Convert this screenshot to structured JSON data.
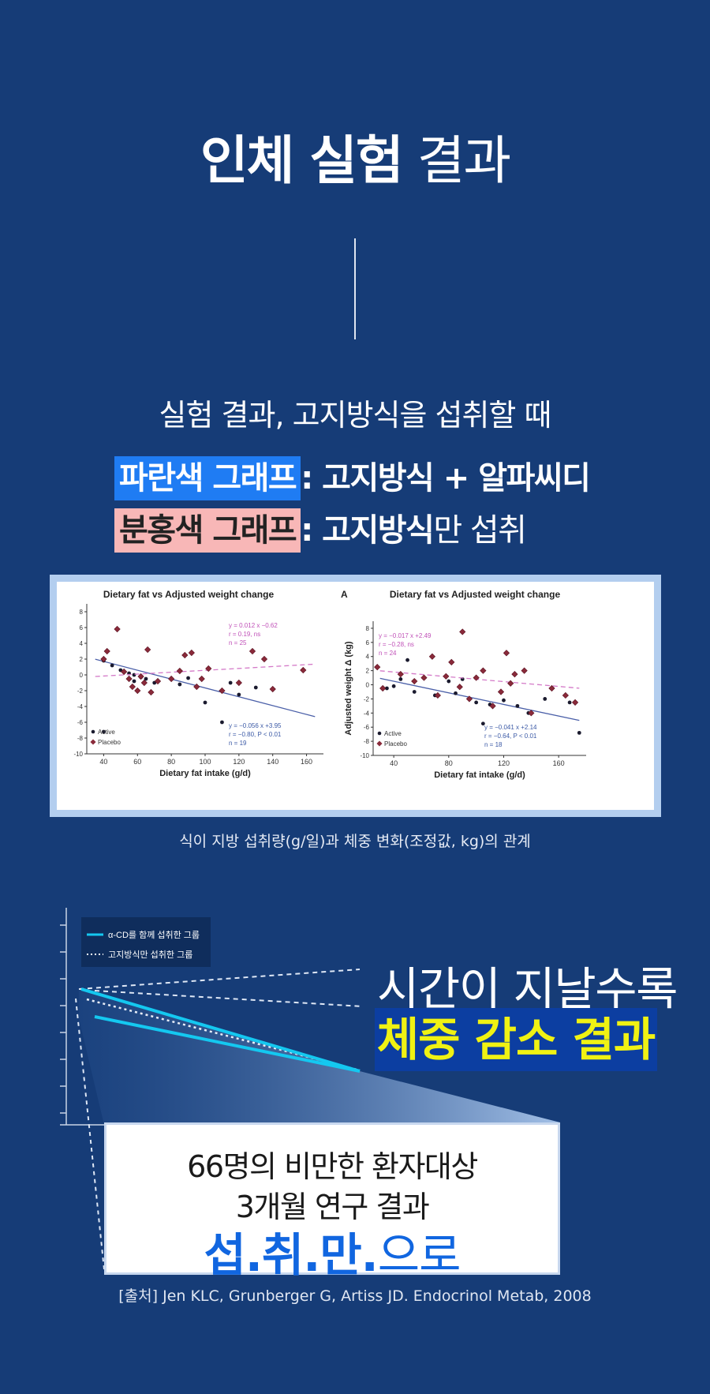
{
  "header": {
    "title_bold": "인체 실험",
    "title_normal": "결과"
  },
  "intro": "실험 결과, 고지방식을 섭취할 때",
  "legend": {
    "blue_tag": "파란색 그래프",
    "blue_desc": ": 고지방식 + 알파씨디",
    "pink_tag": "분홍색 그래프",
    "pink_desc_bold": ": 고지방식",
    "pink_desc_normal": "만 섭취"
  },
  "colors": {
    "background": "#163c77",
    "blue_tag": "#1f7cf3",
    "pink_tag": "#f8b7b7",
    "highlight_bg": "#0c3ea1",
    "highlight_text": "#f0f213",
    "cyan_line": "#14c8f0"
  },
  "chart_data": [
    {
      "type": "scatter",
      "title": "Dietary fat vs Adjusted weight change",
      "xlabel": "Dietary fat intake (g/d)",
      "ylabel": "",
      "xlim": [
        30,
        170
      ],
      "ylim": [
        -10,
        9
      ],
      "xticks": [
        "40",
        "60",
        "80",
        "100",
        "120",
        "140",
        "160"
      ],
      "yticks": [
        "8",
        "6",
        "4",
        "2",
        "0",
        "-2",
        "-4",
        "-6",
        "-8",
        "-10"
      ],
      "legend": [
        "Active",
        "Placebo"
      ],
      "legend_position": "bottom-left",
      "annotations": [
        {
          "series": "Placebo",
          "lines": [
            "y = 0.012 x −0.62",
            "r = 0.19, ns",
            "n = 25"
          ]
        },
        {
          "series": "Active",
          "lines": [
            "y = −0.056 x +3.95",
            "r = −0.80, P < 0.01",
            "n = 19"
          ]
        }
      ],
      "series": [
        {
          "name": "Active",
          "points": [
            [
              40,
              1.8
            ],
            [
              45,
              1.2
            ],
            [
              50,
              0.6
            ],
            [
              55,
              0.2
            ],
            [
              58,
              0.0
            ],
            [
              62,
              -0.3
            ],
            [
              65,
              -0.5
            ],
            [
              70,
              -1.0
            ],
            [
              85,
              -1.2
            ],
            [
              90,
              -0.4
            ],
            [
              95,
              -1.5
            ],
            [
              100,
              -3.5
            ],
            [
              110,
              -6.0
            ],
            [
              115,
              -1.0
            ],
            [
              120,
              -2.5
            ],
            [
              130,
              -1.6
            ],
            [
              140,
              -1.8
            ],
            [
              40,
              -7.2
            ],
            [
              58,
              -0.8
            ]
          ],
          "fit": [
            -0.056,
            3.95
          ]
        },
        {
          "name": "Placebo",
          "points": [
            [
              40,
              2.0
            ],
            [
              42,
              3.0
            ],
            [
              48,
              5.8
            ],
            [
              52,
              0.4
            ],
            [
              55,
              -0.5
            ],
            [
              57,
              -1.5
            ],
            [
              60,
              -2.0
            ],
            [
              62,
              -0.2
            ],
            [
              64,
              -1.0
            ],
            [
              66,
              3.2
            ],
            [
              68,
              -2.2
            ],
            [
              72,
              -0.8
            ],
            [
              80,
              -0.5
            ],
            [
              85,
              0.5
            ],
            [
              88,
              2.5
            ],
            [
              92,
              2.8
            ],
            [
              95,
              -1.5
            ],
            [
              98,
              -0.5
            ],
            [
              102,
              0.8
            ],
            [
              110,
              -2.0
            ],
            [
              120,
              -1.0
            ],
            [
              128,
              3.0
            ],
            [
              135,
              2.0
            ],
            [
              140,
              -1.8
            ],
            [
              158,
              0.6
            ]
          ],
          "fit": [
            0.012,
            -0.62
          ]
        }
      ]
    },
    {
      "type": "scatter",
      "title": "Dietary fat vs Adjusted weight change",
      "panel_label": "A",
      "xlabel": "Dietary fat intake (g/d)",
      "ylabel": "Adjusted weight Δ (kg)",
      "xlim": [
        25,
        180
      ],
      "ylim": [
        -10,
        9
      ],
      "xticks": [
        "40",
        "80",
        "120",
        "160"
      ],
      "yticks": [
        "8",
        "6",
        "4",
        "2",
        "0",
        "-2",
        "-4",
        "-6",
        "-8",
        "-10"
      ],
      "legend": [
        "Active",
        "Placebo"
      ],
      "legend_position": "bottom-left",
      "annotations": [
        {
          "series": "Placebo",
          "lines": [
            "y = −0.017 x +2.49",
            "r = −0.28, ns",
            "n = 24"
          ]
        },
        {
          "series": "Active",
          "lines": [
            "y = −0.041 x +2.14",
            "r = −0.64, P < 0.01",
            "n = 18"
          ]
        }
      ],
      "series": [
        {
          "name": "Active",
          "points": [
            [
              35,
              -0.5
            ],
            [
              40,
              -0.2
            ],
            [
              45,
              0.8
            ],
            [
              50,
              3.5
            ],
            [
              55,
              -1.0
            ],
            [
              70,
              -1.5
            ],
            [
              80,
              0.5
            ],
            [
              85,
              -1.2
            ],
            [
              90,
              0.8
            ],
            [
              100,
              -2.5
            ],
            [
              105,
              -5.5
            ],
            [
              110,
              -2.8
            ],
            [
              120,
              -2.2
            ],
            [
              130,
              -3.0
            ],
            [
              138,
              -4.0
            ],
            [
              150,
              -2.0
            ],
            [
              168,
              -2.5
            ],
            [
              175,
              -6.8
            ]
          ],
          "fit": [
            -0.041,
            2.14
          ]
        },
        {
          "name": "Placebo",
          "points": [
            [
              28,
              2.5
            ],
            [
              32,
              -0.5
            ],
            [
              45,
              1.5
            ],
            [
              55,
              0.5
            ],
            [
              62,
              1.0
            ],
            [
              68,
              4.0
            ],
            [
              72,
              -1.5
            ],
            [
              78,
              1.2
            ],
            [
              82,
              3.2
            ],
            [
              88,
              -0.3
            ],
            [
              90,
              7.5
            ],
            [
              95,
              -2.0
            ],
            [
              100,
              1.0
            ],
            [
              105,
              2.0
            ],
            [
              112,
              -3.0
            ],
            [
              118,
              -1.0
            ],
            [
              122,
              4.5
            ],
            [
              125,
              0.2
            ],
            [
              128,
              1.5
            ],
            [
              135,
              2.0
            ],
            [
              140,
              -4.0
            ],
            [
              155,
              -0.5
            ],
            [
              165,
              -1.5
            ],
            [
              172,
              -2.5
            ]
          ],
          "fit": [
            -0.017,
            2.49
          ]
        }
      ]
    },
    {
      "type": "line",
      "title": "",
      "xlabel": "",
      "ylabel": "",
      "legend": [
        "α-CD를 함께 섭취한 그룹",
        "고지방식만 섭취한 그룹"
      ],
      "legend_position": "top-left",
      "series": [
        {
          "name": "α-CD를 함께 섭취한 그룹",
          "style": "solid"
        },
        {
          "name": "고지방식만 섭취한 그룹",
          "style": "dotted"
        }
      ]
    }
  ],
  "caption": "식이 지방 섭취량(g/일)과 체중 변화(조정값, kg)의 관계",
  "result_heading": "시간이 지날수록",
  "result_highlight": "체중 감소 결과",
  "study": {
    "line1": "66명의 비만한 환자대상",
    "line2": "3개월 연구 결과",
    "line3_bold": "섭.취.만.",
    "line3_normal": "으로"
  },
  "source": "[출처] Jen KLC, Grunberger G, Artiss JD. Endocrinol Metab, 2008"
}
